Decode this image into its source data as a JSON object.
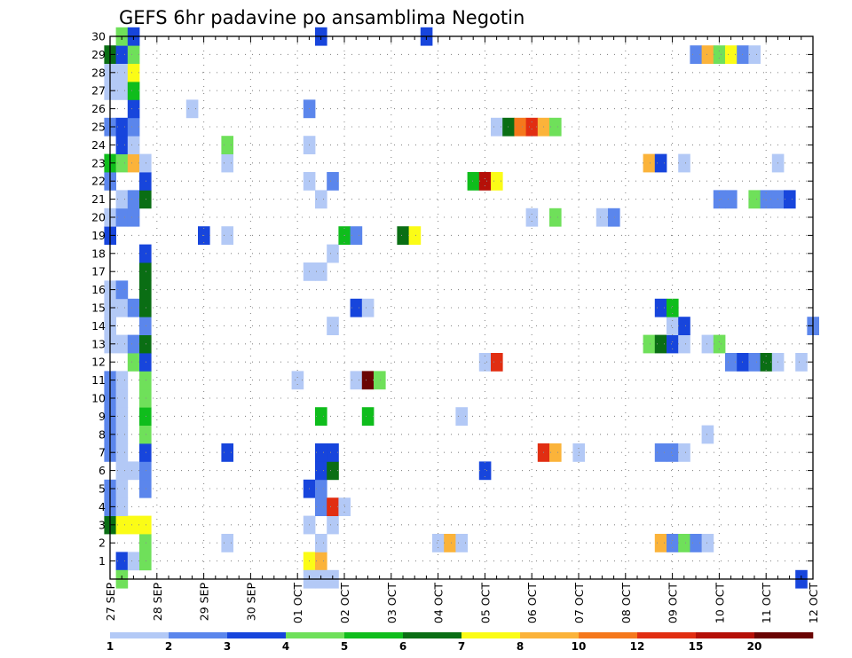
{
  "chart_data": {
    "type": "heatmap",
    "title": "GEFS 6hr padavine po ansamblima Negotin",
    "xlabel": "",
    "ylabel": "",
    "x_ticks": [
      "27 SEP",
      "28 SEP",
      "29 SEP",
      "30 SEP",
      "01 OCT",
      "02 OCT",
      "03 OCT",
      "04 OCT",
      "05 OCT",
      "06 OCT",
      "07 OCT",
      "08 OCT",
      "09 OCT",
      "10 OCT",
      "11 OCT",
      "12 OCT"
    ],
    "xlim": [
      0,
      60
    ],
    "x_unit": "6-hour steps after 27 SEP 00Z",
    "ylim": [
      0,
      30
    ],
    "y_ticks": [
      1,
      2,
      3,
      4,
      5,
      6,
      7,
      8,
      9,
      10,
      11,
      12,
      13,
      14,
      15,
      16,
      17,
      18,
      19,
      20,
      21,
      22,
      23,
      24,
      25,
      26,
      27,
      28,
      29,
      30
    ],
    "grid": true,
    "legend": {
      "placement": "bottom",
      "labels": [
        "1",
        "2",
        "3",
        "4",
        "5",
        "6",
        "7",
        "8",
        "10",
        "12",
        "15",
        "20"
      ],
      "colors": [
        "#b3c9f6",
        "#5b86ec",
        "#1745dc",
        "#6fe05a",
        "#0fbd1c",
        "#0a6e14",
        "#fbfc16",
        "#fbb33a",
        "#f5781c",
        "#e12e12",
        "#b51008",
        "#6a0403"
      ]
    },
    "cells": [
      {
        "step": 1,
        "member": 1,
        "color": 3
      },
      {
        "step": 2,
        "member": 1,
        "color": 1
      },
      {
        "step": 3,
        "member": 1,
        "color": 4
      },
      {
        "step": 17,
        "member": 1,
        "color": 7
      },
      {
        "step": 18,
        "member": 1,
        "color": 8
      },
      {
        "step": 1,
        "member": 0,
        "color": 4
      },
      {
        "step": 17,
        "member": 0,
        "color": 1
      },
      {
        "step": 18,
        "member": 0,
        "color": 1
      },
      {
        "step": 19,
        "member": 0,
        "color": 1
      },
      {
        "step": 59,
        "member": 0,
        "color": 3
      },
      {
        "step": 3,
        "member": 2,
        "color": 4
      },
      {
        "step": 10,
        "member": 2,
        "color": 1
      },
      {
        "step": 18,
        "member": 2,
        "color": 1
      },
      {
        "step": 28,
        "member": 2,
        "color": 1
      },
      {
        "step": 29,
        "member": 2,
        "color": 8
      },
      {
        "step": 30,
        "member": 2,
        "color": 1
      },
      {
        "step": 47,
        "member": 2,
        "color": 8
      },
      {
        "step": 48,
        "member": 2,
        "color": 2
      },
      {
        "step": 49,
        "member": 2,
        "color": 4
      },
      {
        "step": 50,
        "member": 2,
        "color": 2
      },
      {
        "step": 51,
        "member": 2,
        "color": 1
      },
      {
        "step": 0,
        "member": 3,
        "color": 6
      },
      {
        "step": 1,
        "member": 3,
        "color": 7
      },
      {
        "step": 2,
        "member": 3,
        "color": 7
      },
      {
        "step": 3,
        "member": 3,
        "color": 7
      },
      {
        "step": 17,
        "member": 3,
        "color": 1
      },
      {
        "step": 19,
        "member": 3,
        "color": 1
      },
      {
        "step": 0,
        "member": 4,
        "color": 2
      },
      {
        "step": 1,
        "member": 4,
        "color": 1
      },
      {
        "step": 18,
        "member": 4,
        "color": 2
      },
      {
        "step": 19,
        "member": 4,
        "color": 10
      },
      {
        "step": 20,
        "member": 4,
        "color": 1
      },
      {
        "step": 0,
        "member": 5,
        "color": 2
      },
      {
        "step": 1,
        "member": 5,
        "color": 1
      },
      {
        "step": 3,
        "member": 5,
        "color": 2
      },
      {
        "step": 17,
        "member": 5,
        "color": 3
      },
      {
        "step": 18,
        "member": 5,
        "color": 2
      },
      {
        "step": 1,
        "member": 6,
        "color": 1
      },
      {
        "step": 2,
        "member": 6,
        "color": 1
      },
      {
        "step": 3,
        "member": 6,
        "color": 2
      },
      {
        "step": 18,
        "member": 6,
        "color": 3
      },
      {
        "step": 19,
        "member": 6,
        "color": 6
      },
      {
        "step": 32,
        "member": 6,
        "color": 3
      },
      {
        "step": 0,
        "member": 7,
        "color": 2
      },
      {
        "step": 1,
        "member": 7,
        "color": 1
      },
      {
        "step": 3,
        "member": 7,
        "color": 3
      },
      {
        "step": 10,
        "member": 7,
        "color": 3
      },
      {
        "step": 18,
        "member": 7,
        "color": 3
      },
      {
        "step": 19,
        "member": 7,
        "color": 3
      },
      {
        "step": 37,
        "member": 7,
        "color": 10
      },
      {
        "step": 38,
        "member": 7,
        "color": 8
      },
      {
        "step": 40,
        "member": 7,
        "color": 1
      },
      {
        "step": 47,
        "member": 7,
        "color": 2
      },
      {
        "step": 48,
        "member": 7,
        "color": 2
      },
      {
        "step": 49,
        "member": 7,
        "color": 1
      },
      {
        "step": 0,
        "member": 8,
        "color": 2
      },
      {
        "step": 1,
        "member": 8,
        "color": 1
      },
      {
        "step": 3,
        "member": 8,
        "color": 4
      },
      {
        "step": 51,
        "member": 8,
        "color": 1
      },
      {
        "step": 0,
        "member": 9,
        "color": 2
      },
      {
        "step": 1,
        "member": 9,
        "color": 1
      },
      {
        "step": 3,
        "member": 9,
        "color": 5
      },
      {
        "step": 18,
        "member": 9,
        "color": 5
      },
      {
        "step": 22,
        "member": 9,
        "color": 5
      },
      {
        "step": 30,
        "member": 9,
        "color": 1
      },
      {
        "step": 0,
        "member": 10,
        "color": 2
      },
      {
        "step": 1,
        "member": 10,
        "color": 1
      },
      {
        "step": 3,
        "member": 10,
        "color": 4
      },
      {
        "step": 0,
        "member": 11,
        "color": 2
      },
      {
        "step": 1,
        "member": 11,
        "color": 1
      },
      {
        "step": 3,
        "member": 11,
        "color": 4
      },
      {
        "step": 16,
        "member": 11,
        "color": 1
      },
      {
        "step": 21,
        "member": 11,
        "color": 1
      },
      {
        "step": 22,
        "member": 11,
        "color": 12
      },
      {
        "step": 23,
        "member": 11,
        "color": 4
      },
      {
        "step": 2,
        "member": 12,
        "color": 4
      },
      {
        "step": 3,
        "member": 12,
        "color": 3
      },
      {
        "step": 32,
        "member": 12,
        "color": 1
      },
      {
        "step": 33,
        "member": 12,
        "color": 10
      },
      {
        "step": 53,
        "member": 12,
        "color": 2
      },
      {
        "step": 54,
        "member": 12,
        "color": 3
      },
      {
        "step": 55,
        "member": 12,
        "color": 2
      },
      {
        "step": 56,
        "member": 12,
        "color": 6
      },
      {
        "step": 57,
        "member": 12,
        "color": 1
      },
      {
        "step": 59,
        "member": 12,
        "color": 1
      },
      {
        "step": 0,
        "member": 13,
        "color": 1
      },
      {
        "step": 1,
        "member": 13,
        "color": 1
      },
      {
        "step": 2,
        "member": 13,
        "color": 2
      },
      {
        "step": 3,
        "member": 13,
        "color": 6
      },
      {
        "step": 46,
        "member": 13,
        "color": 4
      },
      {
        "step": 47,
        "member": 13,
        "color": 6
      },
      {
        "step": 48,
        "member": 13,
        "color": 3
      },
      {
        "step": 49,
        "member": 13,
        "color": 1
      },
      {
        "step": 51,
        "member": 13,
        "color": 1
      },
      {
        "step": 52,
        "member": 13,
        "color": 4
      },
      {
        "step": 0,
        "member": 14,
        "color": 1
      },
      {
        "step": 3,
        "member": 14,
        "color": 2
      },
      {
        "step": 19,
        "member": 14,
        "color": 1
      },
      {
        "step": 48,
        "member": 14,
        "color": 1
      },
      {
        "step": 49,
        "member": 14,
        "color": 3
      },
      {
        "step": 60,
        "member": 14,
        "color": 2
      },
      {
        "step": 0,
        "member": 15,
        "color": 1
      },
      {
        "step": 1,
        "member": 15,
        "color": 1
      },
      {
        "step": 2,
        "member": 15,
        "color": 2
      },
      {
        "step": 3,
        "member": 15,
        "color": 6
      },
      {
        "step": 21,
        "member": 15,
        "color": 3
      },
      {
        "step": 22,
        "member": 15,
        "color": 1
      },
      {
        "step": 47,
        "member": 15,
        "color": 3
      },
      {
        "step": 48,
        "member": 15,
        "color": 5
      },
      {
        "step": 0,
        "member": 16,
        "color": 1
      },
      {
        "step": 1,
        "member": 16,
        "color": 2
      },
      {
        "step": 3,
        "member": 16,
        "color": 6
      },
      {
        "step": 3,
        "member": 17,
        "color": 6
      },
      {
        "step": 17,
        "member": 17,
        "color": 1
      },
      {
        "step": 18,
        "member": 17,
        "color": 1
      },
      {
        "step": 3,
        "member": 18,
        "color": 3
      },
      {
        "step": 19,
        "member": 18,
        "color": 1
      },
      {
        "step": 0,
        "member": 19,
        "color": 3
      },
      {
        "step": 8,
        "member": 19,
        "color": 3
      },
      {
        "step": 10,
        "member": 19,
        "color": 1
      },
      {
        "step": 20,
        "member": 19,
        "color": 5
      },
      {
        "step": 21,
        "member": 19,
        "color": 2
      },
      {
        "step": 25,
        "member": 19,
        "color": 6
      },
      {
        "step": 26,
        "member": 19,
        "color": 7
      },
      {
        "step": 0,
        "member": 20,
        "color": 1
      },
      {
        "step": 1,
        "member": 20,
        "color": 2
      },
      {
        "step": 2,
        "member": 20,
        "color": 2
      },
      {
        "step": 36,
        "member": 20,
        "color": 1
      },
      {
        "step": 38,
        "member": 20,
        "color": 4
      },
      {
        "step": 42,
        "member": 20,
        "color": 1
      },
      {
        "step": 43,
        "member": 20,
        "color": 2
      },
      {
        "step": 1,
        "member": 21,
        "color": 1
      },
      {
        "step": 2,
        "member": 21,
        "color": 2
      },
      {
        "step": 3,
        "member": 21,
        "color": 6
      },
      {
        "step": 18,
        "member": 21,
        "color": 1
      },
      {
        "step": 52,
        "member": 21,
        "color": 2
      },
      {
        "step": 53,
        "member": 21,
        "color": 2
      },
      {
        "step": 55,
        "member": 21,
        "color": 4
      },
      {
        "step": 56,
        "member": 21,
        "color": 2
      },
      {
        "step": 57,
        "member": 21,
        "color": 2
      },
      {
        "step": 58,
        "member": 21,
        "color": 3
      },
      {
        "step": 0,
        "member": 22,
        "color": 2
      },
      {
        "step": 3,
        "member": 22,
        "color": 3
      },
      {
        "step": 17,
        "member": 22,
        "color": 1
      },
      {
        "step": 19,
        "member": 22,
        "color": 2
      },
      {
        "step": 31,
        "member": 22,
        "color": 5
      },
      {
        "step": 32,
        "member": 22,
        "color": 11
      },
      {
        "step": 33,
        "member": 22,
        "color": 7
      },
      {
        "step": 0,
        "member": 23,
        "color": 5
      },
      {
        "step": 1,
        "member": 23,
        "color": 4
      },
      {
        "step": 2,
        "member": 23,
        "color": 8
      },
      {
        "step": 3,
        "member": 23,
        "color": 1
      },
      {
        "step": 10,
        "member": 23,
        "color": 1
      },
      {
        "step": 46,
        "member": 23,
        "color": 8
      },
      {
        "step": 47,
        "member": 23,
        "color": 3
      },
      {
        "step": 49,
        "member": 23,
        "color": 1
      },
      {
        "step": 57,
        "member": 23,
        "color": 1
      },
      {
        "step": 1,
        "member": 24,
        "color": 3
      },
      {
        "step": 2,
        "member": 24,
        "color": 1
      },
      {
        "step": 10,
        "member": 24,
        "color": 4
      },
      {
        "step": 17,
        "member": 24,
        "color": 1
      },
      {
        "step": 0,
        "member": 25,
        "color": 2
      },
      {
        "step": 1,
        "member": 25,
        "color": 3
      },
      {
        "step": 2,
        "member": 25,
        "color": 2
      },
      {
        "step": 33,
        "member": 25,
        "color": 1
      },
      {
        "step": 34,
        "member": 25,
        "color": 6
      },
      {
        "step": 35,
        "member": 25,
        "color": 9
      },
      {
        "step": 36,
        "member": 25,
        "color": 10
      },
      {
        "step": 37,
        "member": 25,
        "color": 8
      },
      {
        "step": 38,
        "member": 25,
        "color": 4
      },
      {
        "step": 2,
        "member": 26,
        "color": 3
      },
      {
        "step": 7,
        "member": 26,
        "color": 1
      },
      {
        "step": 17,
        "member": 26,
        "color": 2
      },
      {
        "step": 0,
        "member": 27,
        "color": 1
      },
      {
        "step": 1,
        "member": 27,
        "color": 1
      },
      {
        "step": 2,
        "member": 27,
        "color": 5
      },
      {
        "step": 0,
        "member": 28,
        "color": 1
      },
      {
        "step": 1,
        "member": 28,
        "color": 1
      },
      {
        "step": 2,
        "member": 28,
        "color": 7
      },
      {
        "step": 0,
        "member": 29,
        "color": 6
      },
      {
        "step": 1,
        "member": 29,
        "color": 3
      },
      {
        "step": 2,
        "member": 29,
        "color": 4
      },
      {
        "step": 50,
        "member": 29,
        "color": 2
      },
      {
        "step": 51,
        "member": 29,
        "color": 8
      },
      {
        "step": 52,
        "member": 29,
        "color": 4
      },
      {
        "step": 53,
        "member": 29,
        "color": 7
      },
      {
        "step": 54,
        "member": 29,
        "color": 2
      },
      {
        "step": 55,
        "member": 29,
        "color": 1
      },
      {
        "step": 1,
        "member": 30,
        "color": 4
      },
      {
        "step": 2,
        "member": 30,
        "color": 3
      },
      {
        "step": 18,
        "member": 30,
        "color": 3
      },
      {
        "step": 27,
        "member": 30,
        "color": 3
      }
    ]
  }
}
